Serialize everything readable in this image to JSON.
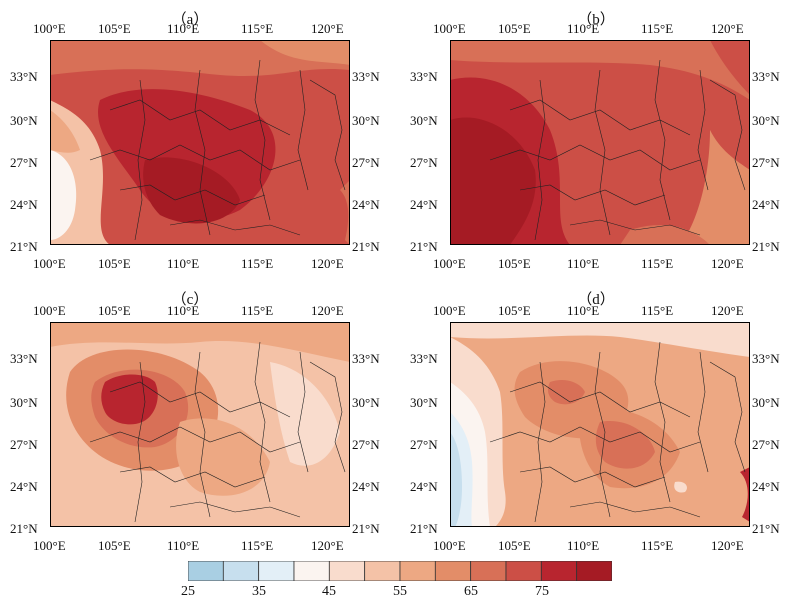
{
  "panels": [
    {
      "id": "a",
      "title": "（a）"
    },
    {
      "id": "b",
      "title": "（b）"
    },
    {
      "id": "c",
      "title": "（c）"
    },
    {
      "id": "d",
      "title": "（d）"
    }
  ],
  "lon_labels": [
    "100°E",
    "105°E",
    "110°E",
    "115°E",
    "120°E"
  ],
  "lat_labels": [
    "33°N",
    "30°N",
    "27°N",
    "24°N",
    "21°N"
  ],
  "map_extent": {
    "lon": [
      100,
      121
    ],
    "lat": [
      21,
      35
    ]
  },
  "colorbar": {
    "ticks": [
      "25",
      "35",
      "45",
      "55",
      "65",
      "75"
    ],
    "levels": [
      25,
      30,
      35,
      40,
      45,
      50,
      55,
      60,
      65,
      70,
      75,
      80,
      85
    ],
    "colors": [
      "#a9cfe3",
      "#c7dfee",
      "#e3eff7",
      "#fbf4f0",
      "#f9dccd",
      "#f4c2a7",
      "#eda883",
      "#e38d68",
      "#d87057",
      "#cc4f46",
      "#b8252f",
      "#a51b24"
    ]
  },
  "colors": {
    "background": "#ffffff",
    "border": "#222222"
  }
}
